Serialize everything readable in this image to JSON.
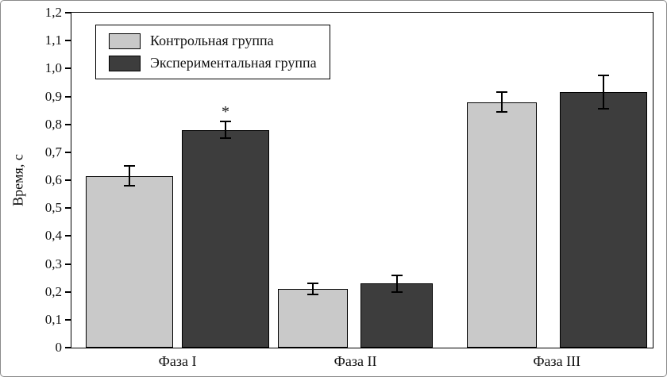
{
  "chart_data": {
    "type": "bar",
    "title": "",
    "xlabel": "",
    "ylabel": "Время, с",
    "ylim": [
      0,
      1.2
    ],
    "ytick_step": 0.1,
    "ytick_labels": [
      "0",
      "0,1",
      "0,2",
      "0,3",
      "0,4",
      "0,5",
      "0,6",
      "0,7",
      "0,8",
      "0,9",
      "1,0",
      "1,1",
      "1,2"
    ],
    "decimal_separator": ",",
    "grid": false,
    "legend_position": "top-left-inside",
    "categories": [
      "Фаза I",
      "Фаза II",
      "Фаза III"
    ],
    "series": [
      {
        "name": "Контрольная группа",
        "color": "#c9c9c9",
        "values": [
          0.615,
          0.21,
          0.88
        ],
        "errors": [
          0.035,
          0.02,
          0.035
        ]
      },
      {
        "name": "Экспериментальная группа",
        "color": "#3d3d3d",
        "values": [
          0.78,
          0.23,
          0.915
        ],
        "errors": [
          0.03,
          0.03,
          0.06
        ]
      }
    ],
    "annotations": [
      {
        "text": "*",
        "series": 1,
        "category": "Фаза I",
        "meaning": "significance-marker"
      }
    ]
  }
}
